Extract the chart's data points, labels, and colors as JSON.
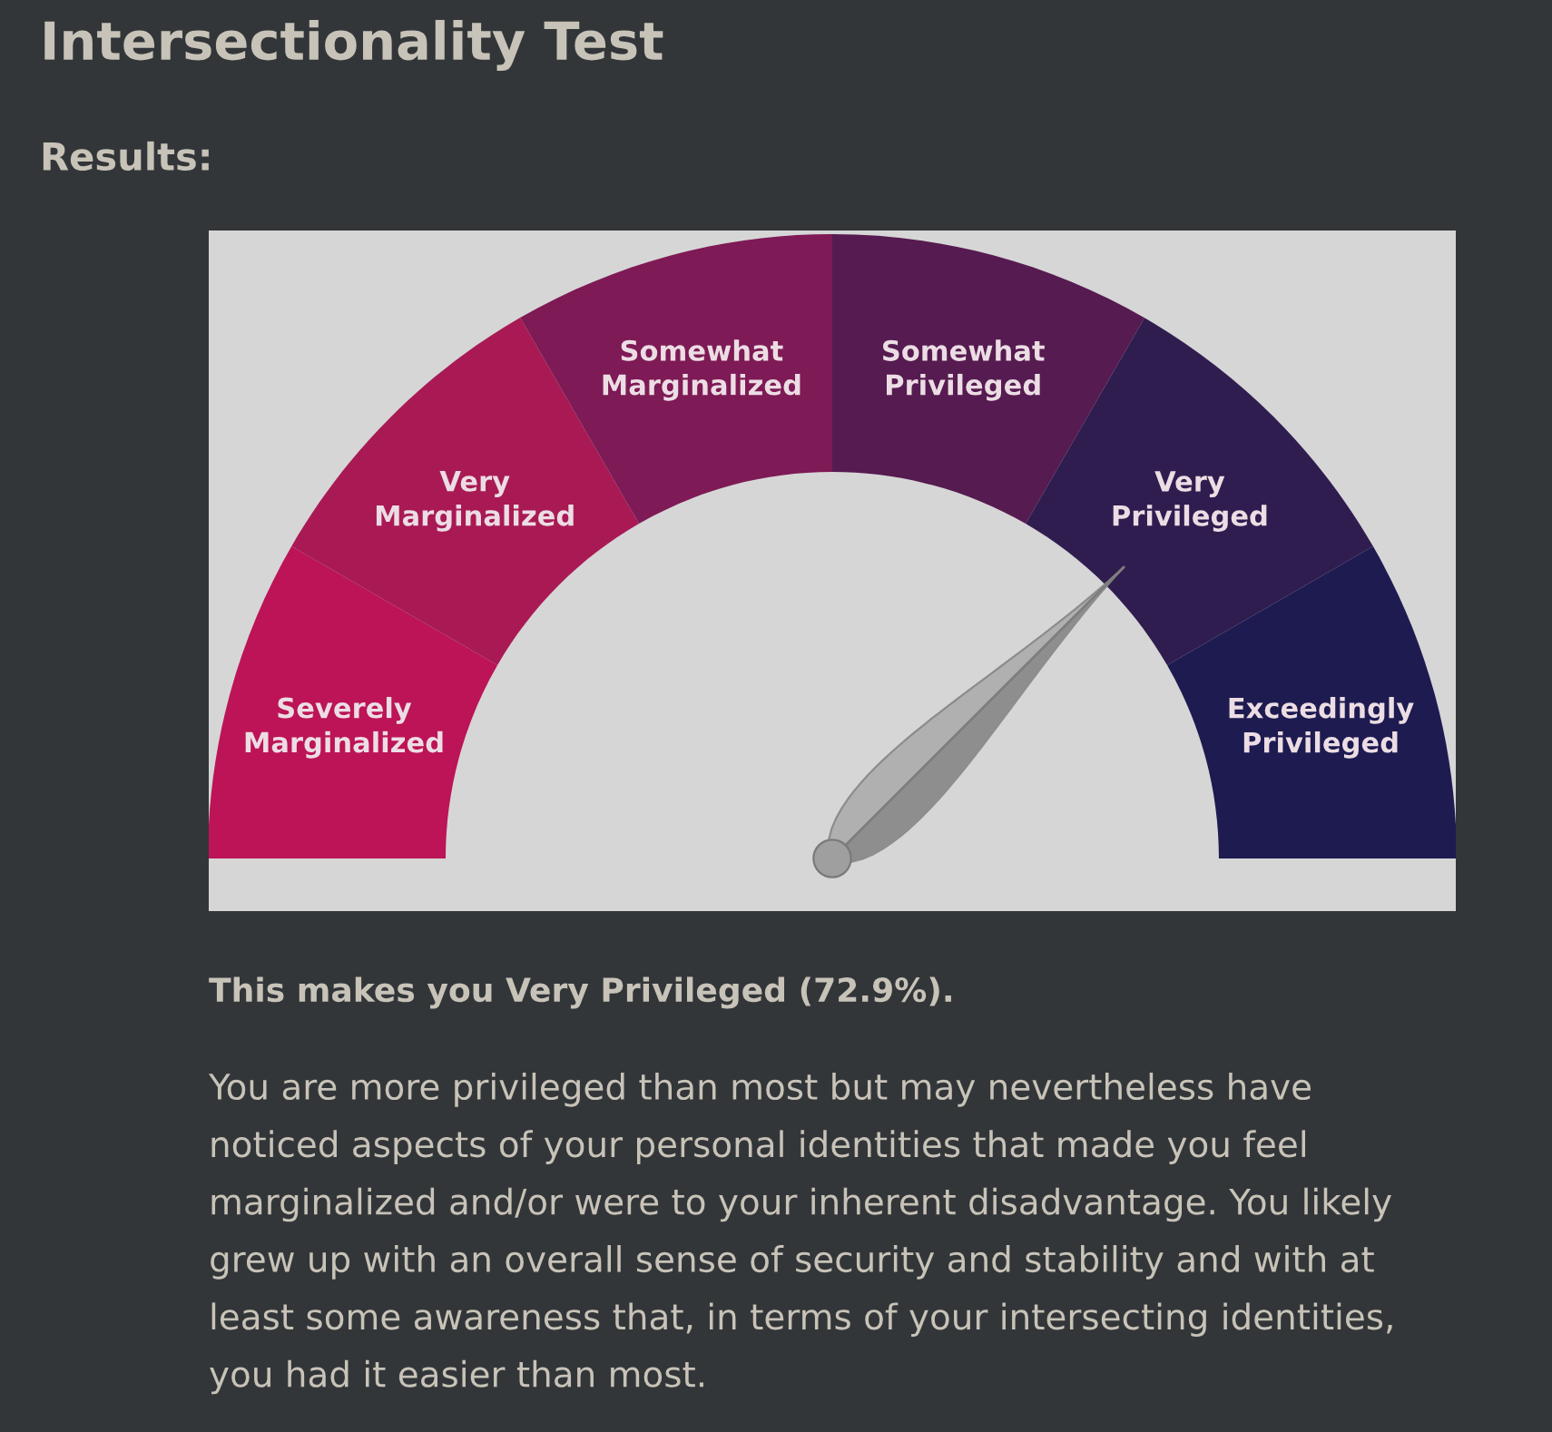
{
  "chart_data": {
    "type": "donut",
    "title": "Intersectionality Test",
    "subtitle": "Results:",
    "categories": [
      "Severely Marginalized",
      "Very Marginalized",
      "Somewhat Marginalized",
      "Somewhat Privileged",
      "Very Privileged",
      "Exceedingly Privileged"
    ],
    "values": [
      16.67,
      16.67,
      16.66,
      16.67,
      16.67,
      16.66
    ],
    "colors": [
      "#bc1456",
      "#a91a55",
      "#7e1a55",
      "#561b50",
      "#301d50",
      "#1d1b50"
    ],
    "needle": "Very Privileged",
    "annotations": [
      "This makes you Very Privileged (72.9%).",
      "You are more privileged than most but may nevertheless have noticed aspects of your personal identities that made you feel marginalized and/or were to your inherent disadvantage. You likely grew up with an overall sense of security and stability and with at least some awareness that, in terms of your intersecting identities, you had it easier than most."
    ]
  }
}
